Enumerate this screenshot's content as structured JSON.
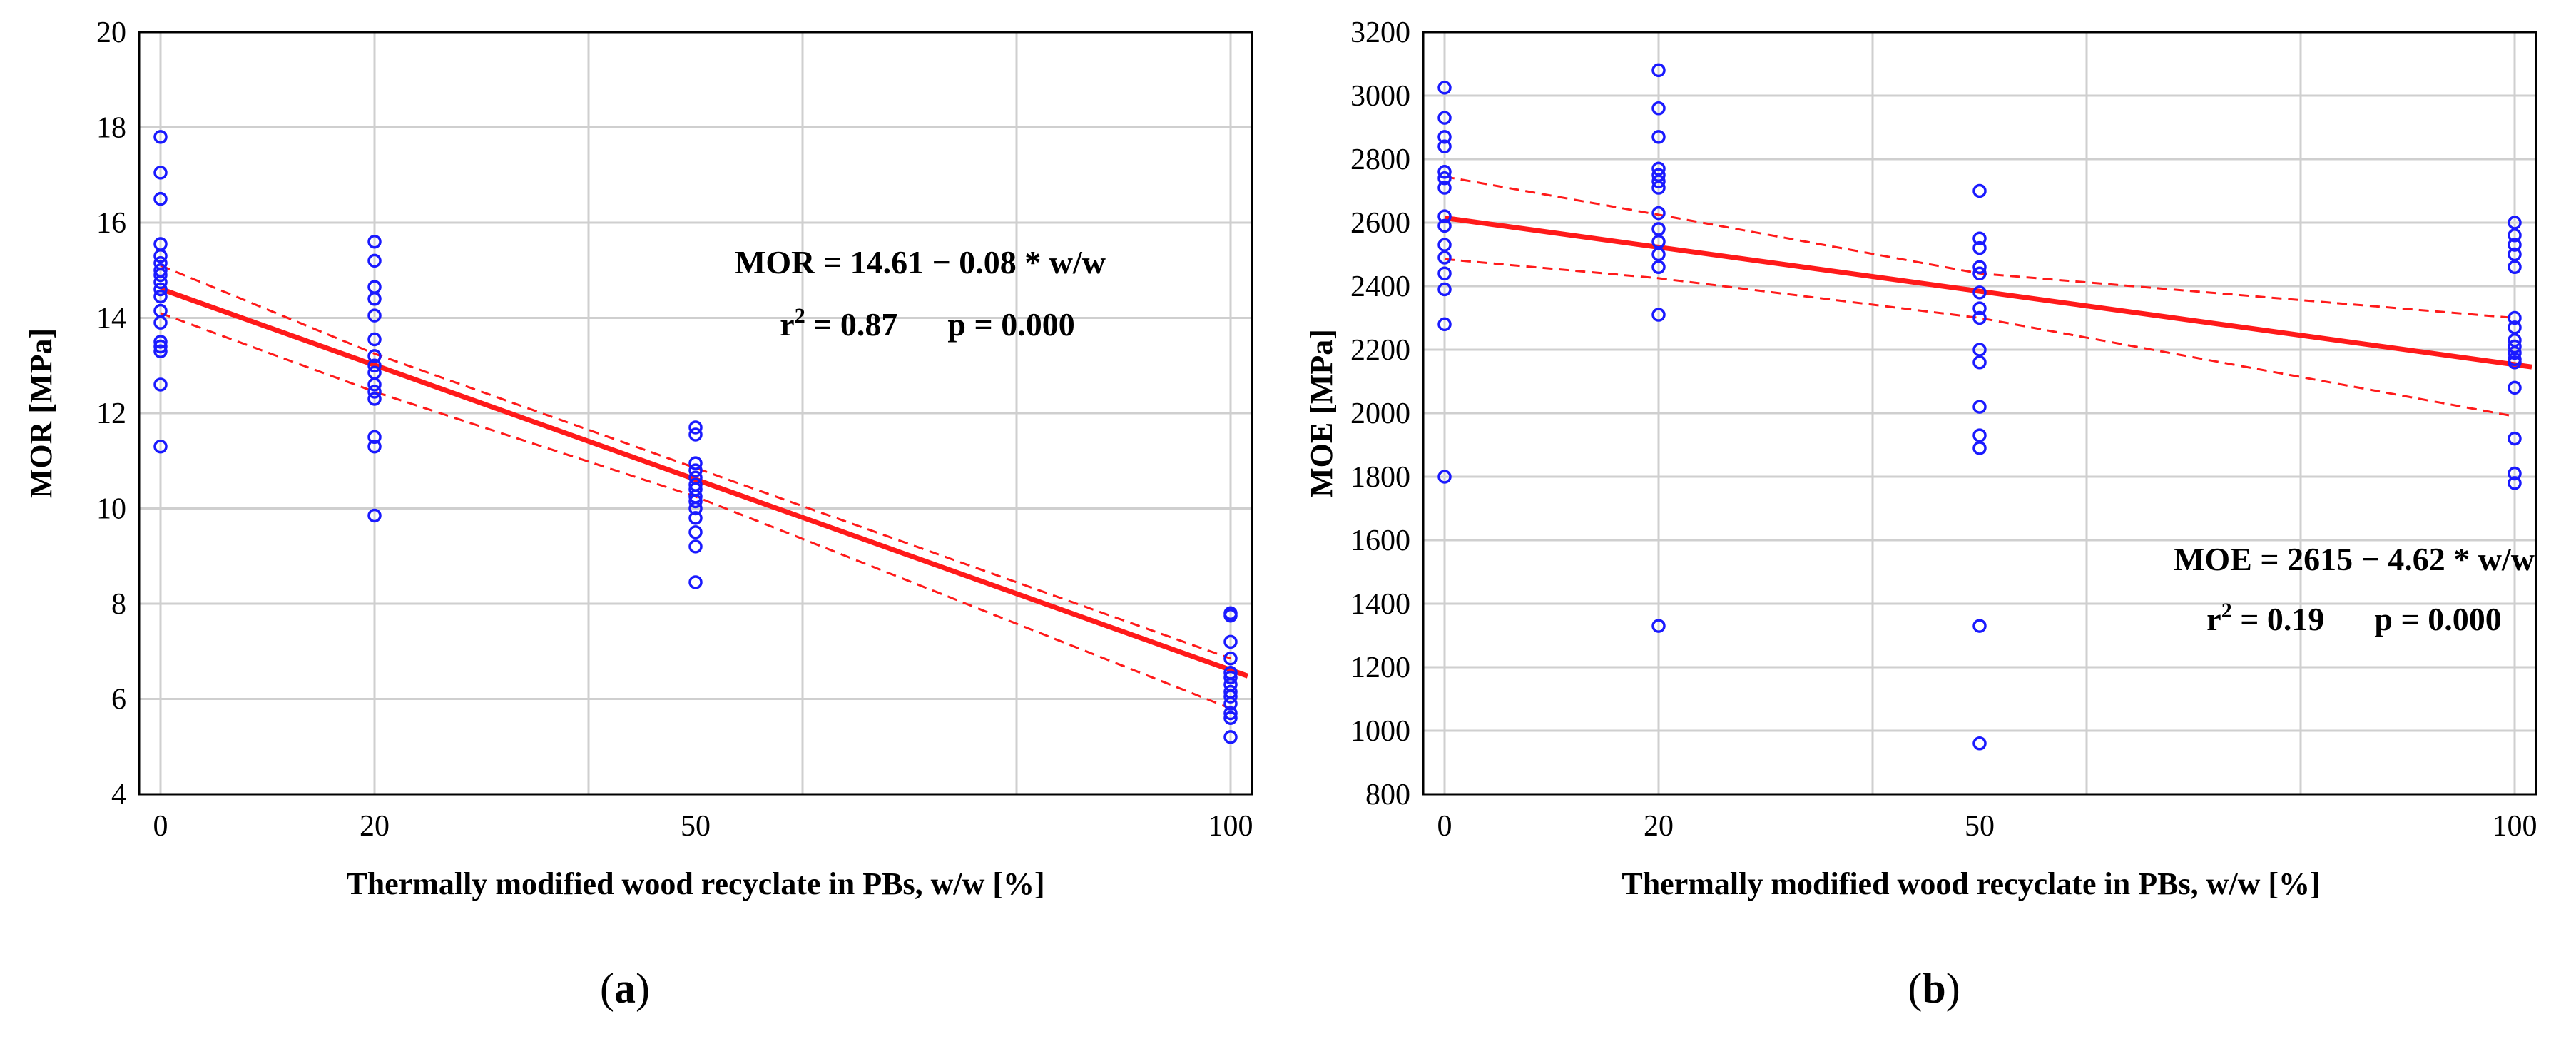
{
  "chart_data": [
    {
      "id": "a",
      "type": "scatter",
      "panel_label": "(a)",
      "panel_letter": "a",
      "xlabel": "Thermally modified wood recyclate in PBs, w/w  [%]",
      "ylabel": "MOR  [MPa]",
      "xlim": [
        -2,
        102
      ],
      "ylim": [
        4,
        20
      ],
      "x_ticks": [
        0,
        20,
        50,
        100
      ],
      "x_grid": [
        0,
        20,
        40,
        60,
        80,
        100
      ],
      "y_ticks": [
        4,
        6,
        8,
        10,
        12,
        14,
        16,
        18,
        20
      ],
      "equation": "MOR = 14.61 − 0.08 * w/w",
      "stats_r": "r",
      "stats_r_sup": "2",
      "stats_r_value": " = 0.87",
      "stats_p": "p = 0.000",
      "fit": {
        "intercept": 14.61,
        "slope": -0.08
      },
      "ci_upper": {
        "x": [
          0,
          20,
          50,
          100
        ],
        "y": [
          15.1,
          13.25,
          10.85,
          6.85
        ]
      },
      "ci_lower": {
        "x": [
          0,
          20,
          50,
          100
        ],
        "y": [
          14.1,
          12.45,
          10.25,
          5.8
        ]
      },
      "points": [
        {
          "x": 0,
          "y": [
            17.8,
            17.05,
            16.5,
            15.55,
            15.3,
            15.15,
            15.0,
            14.9,
            14.75,
            14.6,
            14.45,
            14.15,
            13.9,
            13.5,
            13.4,
            13.3,
            12.6,
            11.3
          ]
        },
        {
          "x": 20,
          "y": [
            15.6,
            15.2,
            14.65,
            14.4,
            14.05,
            13.55,
            13.2,
            13.0,
            12.85,
            12.6,
            12.45,
            12.3,
            11.5,
            11.3,
            9.85
          ]
        },
        {
          "x": 50,
          "y": [
            11.7,
            11.55,
            10.95,
            10.8,
            10.65,
            10.5,
            10.4,
            10.25,
            10.15,
            10.0,
            9.8,
            9.5,
            9.2,
            8.45
          ]
        },
        {
          "x": 100,
          "y": [
            7.8,
            7.75,
            7.2,
            6.85,
            6.55,
            6.45,
            6.3,
            6.15,
            6.05,
            5.9,
            5.7,
            5.6,
            5.2
          ]
        }
      ]
    },
    {
      "id": "b",
      "type": "scatter",
      "panel_label": "(b)",
      "panel_letter": "b",
      "xlabel": "Thermally modified wood recyclate in PBs, w/w  [%]",
      "ylabel": "MOE  [MPa]",
      "xlim": [
        -2,
        102
      ],
      "ylim": [
        800,
        3200
      ],
      "x_ticks": [
        0,
        20,
        50,
        100
      ],
      "x_grid": [
        0,
        20,
        40,
        60,
        80,
        100
      ],
      "y_ticks": [
        800,
        1000,
        1200,
        1400,
        1600,
        1800,
        2000,
        2200,
        2400,
        2600,
        2800,
        3000,
        3200
      ],
      "equation": "MOE = 2615 − 4.62 * w/w",
      "stats_r": "r",
      "stats_r_sup": "2",
      "stats_r_value": " = 0.19",
      "stats_p": "p = 0.000",
      "fit": {
        "intercept": 2615,
        "slope": -4.62
      },
      "ci_upper": {
        "x": [
          0,
          20,
          50,
          100
        ],
        "y": [
          2745,
          2625,
          2440,
          2300
        ]
      },
      "ci_lower": {
        "x": [
          0,
          20,
          50,
          100
        ],
        "y": [
          2485,
          2425,
          2300,
          1990
        ]
      },
      "points": [
        {
          "x": 0,
          "y": [
            3025,
            2930,
            2870,
            2840,
            2760,
            2740,
            2710,
            2620,
            2590,
            2530,
            2490,
            2440,
            2390,
            2280,
            1800
          ]
        },
        {
          "x": 20,
          "y": [
            3080,
            2960,
            2870,
            2770,
            2750,
            2730,
            2710,
            2630,
            2580,
            2540,
            2500,
            2460,
            2310,
            1330
          ]
        },
        {
          "x": 50,
          "y": [
            2700,
            2550,
            2520,
            2460,
            2440,
            2380,
            2330,
            2300,
            2200,
            2160,
            2020,
            1930,
            1890,
            1330,
            960
          ]
        },
        {
          "x": 100,
          "y": [
            2600,
            2560,
            2530,
            2500,
            2460,
            2300,
            2270,
            2230,
            2210,
            2190,
            2170,
            2160,
            2080,
            1920,
            1810,
            1780
          ]
        }
      ]
    }
  ]
}
